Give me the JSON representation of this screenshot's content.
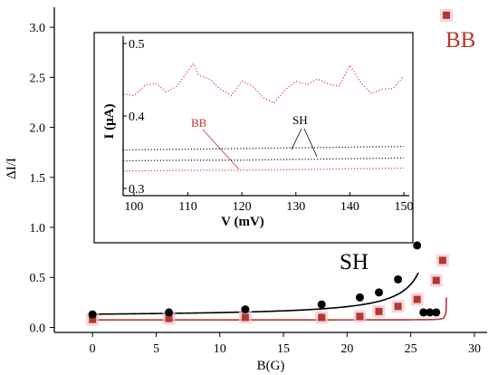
{
  "chart_data": [
    {
      "type": "scatter",
      "xlabel": "B(G)",
      "ylabel": "ΔI/I",
      "xlim": [
        -3,
        31
      ],
      "ylim": [
        -0.05,
        3.2
      ],
      "xticks": [
        0,
        5,
        10,
        15,
        20,
        25,
        30
      ],
      "yticks": [
        0.0,
        0.5,
        1.0,
        1.5,
        2.0,
        2.5,
        3.0
      ],
      "yticklabels": [
        "0.0",
        "0.5",
        "1.0",
        "1.5",
        "2.0",
        "2.5",
        "3.0"
      ],
      "series": [
        {
          "name": "SH",
          "color": "#000000",
          "marker": "circle",
          "x": [
            0,
            6,
            12,
            18,
            21,
            22.5,
            24,
            25.5
          ],
          "y": [
            0.13,
            0.15,
            0.18,
            0.23,
            0.3,
            0.35,
            0.48,
            0.82
          ],
          "extra_points": [
            [
              26,
              0.15
            ],
            [
              26.5,
              0.15
            ],
            [
              27,
              0.15
            ]
          ]
        },
        {
          "name": "BB",
          "color": "#b5372f",
          "marker": "square",
          "x": [
            0,
            6,
            12,
            18,
            21,
            22.5,
            24,
            25.5,
            27,
            27.5,
            27.8
          ],
          "y": [
            0.08,
            0.09,
            0.1,
            0.1,
            0.11,
            0.16,
            0.21,
            0.28,
            0.47,
            0.67,
            3.12
          ]
        }
      ]
    },
    {
      "type": "line",
      "xlabel": "V (mV)",
      "ylabel": "I (μA)",
      "xlim": [
        98,
        151
      ],
      "ylim": [
        0.29,
        0.51
      ],
      "xticks": [
        100,
        110,
        120,
        130,
        140,
        150
      ],
      "yticks": [
        0.3,
        0.4,
        0.5
      ],
      "yticklabels": [
        "0.3",
        "0.4",
        "0.5"
      ],
      "annotations": {
        "bb": "BB",
        "sh": "SH"
      },
      "series": [
        {
          "name": "BB",
          "color": "#d6453a",
          "x": [
            98,
            100,
            102,
            104,
            106,
            108,
            110,
            111,
            112,
            114,
            116,
            118,
            120,
            122,
            124,
            126,
            128,
            130,
            132,
            134,
            136,
            138,
            140,
            142,
            144,
            146,
            148,
            150
          ],
          "y": [
            0.43,
            0.428,
            0.442,
            0.445,
            0.433,
            0.441,
            0.462,
            0.472,
            0.456,
            0.451,
            0.437,
            0.428,
            0.448,
            0.441,
            0.425,
            0.418,
            0.436,
            0.448,
            0.443,
            0.451,
            0.444,
            0.441,
            0.47,
            0.446,
            0.431,
            0.437,
            0.438,
            0.455
          ]
        },
        {
          "name": "BB-low",
          "color": "#d6453a",
          "x": [
            98,
            110,
            120,
            130,
            140,
            150
          ],
          "y": [
            0.324,
            0.325,
            0.325,
            0.326,
            0.327,
            0.328
          ]
        },
        {
          "name": "SH-upper",
          "color": "#222222",
          "x": [
            98,
            110,
            120,
            130,
            140,
            150
          ],
          "y": [
            0.353,
            0.354,
            0.355,
            0.356,
            0.357,
            0.358
          ]
        },
        {
          "name": "SH-lower",
          "color": "#222222",
          "x": [
            98,
            110,
            120,
            130,
            140,
            150
          ],
          "y": [
            0.338,
            0.339,
            0.339,
            0.34,
            0.341,
            0.342
          ]
        }
      ]
    }
  ]
}
